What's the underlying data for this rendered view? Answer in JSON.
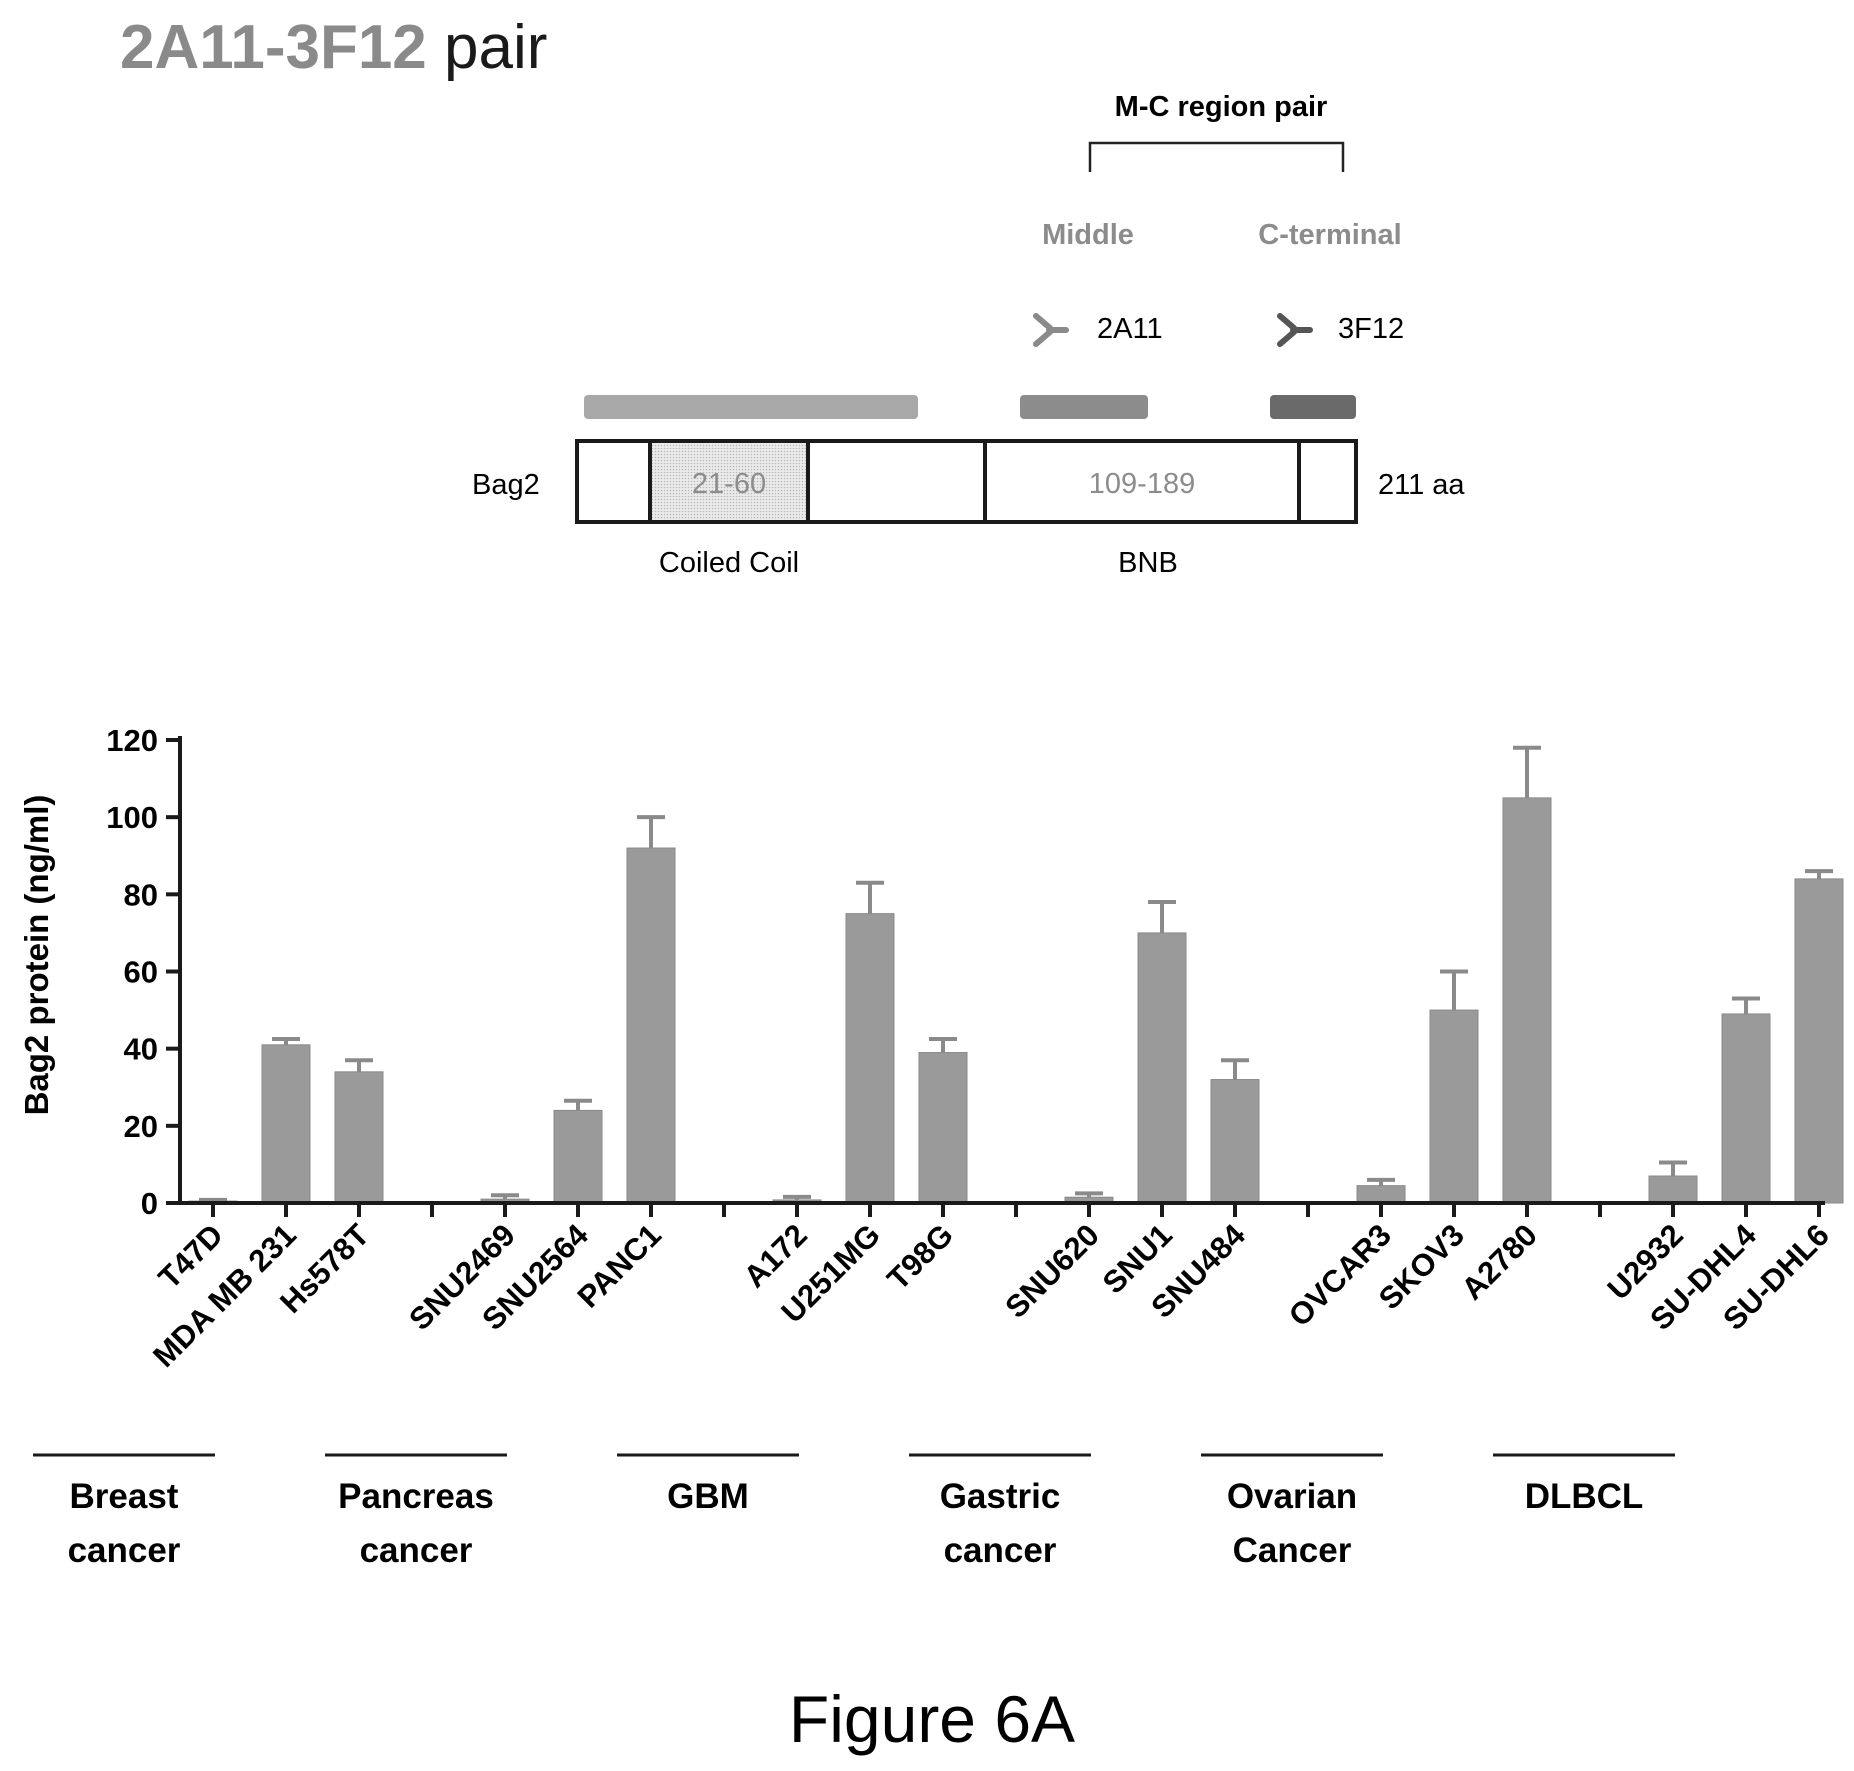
{
  "header": {
    "title_part1": "2A11",
    "title_dash": "-",
    "title_part2": "3F12",
    "title_part3": " pair"
  },
  "schematic": {
    "region_pair_label": "M-C region pair",
    "middle_label": "Middle",
    "cterm_label": "C-terminal",
    "antibody1": "2A11",
    "antibody2": "3F12",
    "protein_name": "Bag2",
    "protein_length": "211 aa",
    "domain1_range": "21-60",
    "domain2_range": "109-189",
    "domain1_name": "Coiled Coil",
    "domain2_name": "BNB"
  },
  "chart_data": {
    "type": "bar",
    "ylabel": "Bag2 protein (ng/ml)",
    "ylim": [
      0,
      120
    ],
    "yticks": [
      0,
      20,
      40,
      60,
      80,
      100,
      120
    ],
    "categories": [
      "T47D",
      "MDA MB 231",
      "Hs578T",
      "SNU2469",
      "SNU2564",
      "PANC1",
      "A172",
      "U251MG",
      "T98G",
      "SNU620",
      "SNU1",
      "SNU484",
      "OVCAR3",
      "SKOV3",
      "A2780",
      "U2932",
      "SU-DHL4",
      "SU-DHL6"
    ],
    "values": [
      0.5,
      41,
      34,
      1,
      24,
      92,
      0.8,
      75,
      39,
      1.5,
      70,
      32,
      4.5,
      50,
      105,
      7,
      49,
      84
    ],
    "errors": [
      0.3,
      1.5,
      3,
      1,
      2.5,
      8,
      0.8,
      8,
      3.5,
      1,
      8,
      5,
      1.5,
      10,
      13,
      3.5,
      4,
      2
    ],
    "groups": [
      {
        "line1": "Breast",
        "line2": "cancer"
      },
      {
        "line1": "Pancreas",
        "line2": "cancer"
      },
      {
        "line1": "GBM",
        "line2": ""
      },
      {
        "line1": "Gastric",
        "line2": "cancer"
      },
      {
        "line1": "Ovarian",
        "line2": "Cancer"
      },
      {
        "line1": "DLBCL",
        "line2": ""
      }
    ],
    "bar_color": "#9a9a9a"
  },
  "figure_label": "Figure 6A"
}
